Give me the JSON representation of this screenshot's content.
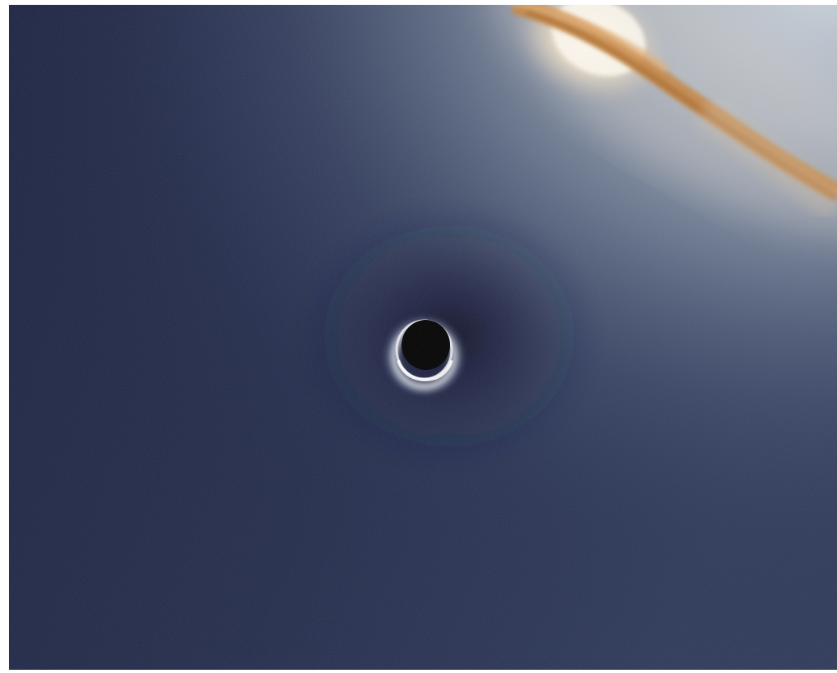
{
  "image": {
    "kind": "rendered-space-scene",
    "subjects": [
      "black-hole",
      "einstein-ring",
      "lensed-galaxy",
      "starfield-sky"
    ],
    "colors": {
      "sky_dark": "#1b2240",
      "sky_mid": "#2e3a5c",
      "sky_glow": "#8a97a8",
      "galaxy_core": "#fff5dc",
      "galaxy_dust": "#c9833a",
      "shadow": "#000000",
      "ring": "#e8edf5"
    }
  }
}
